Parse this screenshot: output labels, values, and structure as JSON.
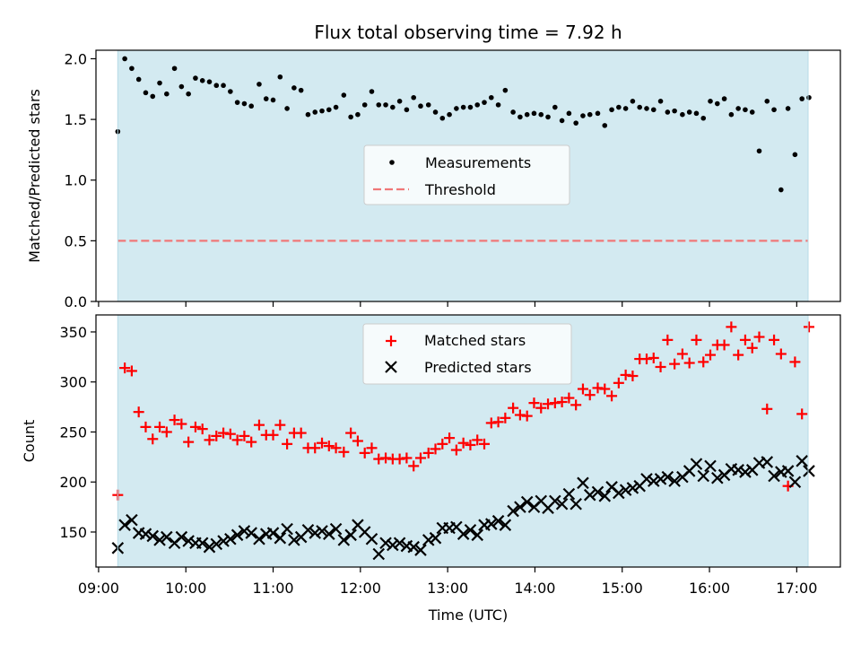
{
  "chart_data": [
    {
      "type": "scatter",
      "title": "Flux total observing time = 7.92 h",
      "xlabel": "",
      "ylabel": "Matched/Predicted stars",
      "xlim": [
        8.97,
        17.5
      ],
      "ylim": [
        0.0,
        2.07
      ],
      "yticks": [
        0.0,
        0.5,
        1.0,
        1.5,
        2.0
      ],
      "ytick_labels": [
        "0.0",
        "0.5",
        "1.0",
        "1.5",
        "2.0"
      ],
      "shaded_span": [
        9.22,
        17.13
      ],
      "threshold": 0.5,
      "threshold_color": "#f07878",
      "shade_color": "#d3eaf1",
      "series": [
        {
          "name": "Measurements",
          "color": "#000000",
          "marker": "dot",
          "x": [
            9.22,
            9.3,
            9.38,
            9.46,
            9.54,
            9.62,
            9.7,
            9.78,
            9.87,
            9.95,
            10.03,
            10.11,
            10.19,
            10.27,
            10.35,
            10.43,
            10.51,
            10.59,
            10.67,
            10.75,
            10.84,
            10.92,
            11.0,
            11.08,
            11.16,
            11.24,
            11.32,
            11.4,
            11.48,
            11.56,
            11.64,
            11.72,
            11.81,
            11.89,
            11.97,
            12.05,
            12.13,
            12.21,
            12.29,
            12.37,
            12.45,
            12.53,
            12.61,
            12.69,
            12.78,
            12.86,
            12.94,
            13.02,
            13.1,
            13.18,
            13.26,
            13.34,
            13.42,
            13.5,
            13.58,
            13.66,
            13.75,
            13.83,
            13.91,
            13.99,
            14.07,
            14.15,
            14.23,
            14.31,
            14.39,
            14.47,
            14.55,
            14.63,
            14.72,
            14.8,
            14.88,
            14.96,
            15.04,
            15.12,
            15.2,
            15.28,
            15.36,
            15.44,
            15.52,
            15.6,
            15.69,
            15.77,
            15.85,
            15.93,
            16.01,
            16.09,
            16.17,
            16.25,
            16.33,
            16.41,
            16.49,
            16.57,
            16.66,
            16.74,
            16.82,
            16.9,
            16.98,
            17.06,
            17.14
          ],
          "y": [
            1.4,
            2.0,
            1.92,
            1.83,
            1.72,
            1.69,
            1.8,
            1.71,
            1.92,
            1.77,
            1.71,
            1.84,
            1.82,
            1.81,
            1.78,
            1.78,
            1.73,
            1.64,
            1.63,
            1.61,
            1.79,
            1.67,
            1.66,
            1.85,
            1.59,
            1.76,
            1.74,
            1.54,
            1.56,
            1.57,
            1.58,
            1.6,
            1.7,
            1.52,
            1.54,
            1.62,
            1.73,
            1.62,
            1.62,
            1.6,
            1.65,
            1.58,
            1.68,
            1.61,
            1.62,
            1.56,
            1.51,
            1.54,
            1.59,
            1.6,
            1.6,
            1.62,
            1.64,
            1.68,
            1.62,
            1.74,
            1.56,
            1.52,
            1.54,
            1.55,
            1.54,
            1.52,
            1.6,
            1.49,
            1.55,
            1.47,
            1.53,
            1.54,
            1.55,
            1.45,
            1.58,
            1.6,
            1.59,
            1.65,
            1.6,
            1.59,
            1.58,
            1.65,
            1.56,
            1.57,
            1.54,
            1.56,
            1.55,
            1.51,
            1.65,
            1.63,
            1.67,
            1.54,
            1.59,
            1.58,
            1.56,
            1.24,
            1.65,
            1.58,
            0.92,
            1.59,
            1.21,
            1.67,
            1.68
          ]
        },
        {
          "name": "Threshold",
          "color": "#f07878",
          "marker": "dashed-line"
        }
      ]
    },
    {
      "type": "scatter",
      "title": "",
      "xlabel": "Time (UTC)",
      "ylabel": "Count",
      "xlim": [
        8.97,
        17.5
      ],
      "ylim": [
        115,
        367
      ],
      "yticks": [
        150,
        200,
        250,
        300,
        350
      ],
      "ytick_labels": [
        "150",
        "200",
        "250",
        "300",
        "350"
      ],
      "xticks": [
        9,
        10,
        11,
        12,
        13,
        14,
        15,
        16,
        17
      ],
      "xtick_labels": [
        "09:00",
        "10:00",
        "11:00",
        "12:00",
        "13:00",
        "14:00",
        "15:00",
        "16:00",
        "17:00"
      ],
      "shaded_span": [
        9.22,
        17.13
      ],
      "series": [
        {
          "name": "Matched stars",
          "color": "#ff0000",
          "marker": "plus",
          "x": [
            9.22,
            9.3,
            9.38,
            9.46,
            9.54,
            9.62,
            9.7,
            9.78,
            9.87,
            9.95,
            10.03,
            10.11,
            10.19,
            10.27,
            10.35,
            10.43,
            10.51,
            10.59,
            10.67,
            10.75,
            10.84,
            10.92,
            11.0,
            11.08,
            11.16,
            11.24,
            11.32,
            11.4,
            11.48,
            11.56,
            11.64,
            11.72,
            11.81,
            11.89,
            11.97,
            12.05,
            12.13,
            12.21,
            12.29,
            12.37,
            12.45,
            12.53,
            12.61,
            12.69,
            12.78,
            12.86,
            12.94,
            13.02,
            13.1,
            13.18,
            13.26,
            13.34,
            13.42,
            13.5,
            13.58,
            13.66,
            13.75,
            13.83,
            13.91,
            13.99,
            14.07,
            14.15,
            14.23,
            14.31,
            14.39,
            14.47,
            14.55,
            14.63,
            14.72,
            14.8,
            14.88,
            14.96,
            15.04,
            15.12,
            15.2,
            15.28,
            15.36,
            15.44,
            15.52,
            15.6,
            15.69,
            15.77,
            15.85,
            15.93,
            16.01,
            16.09,
            16.17,
            16.25,
            16.33,
            16.41,
            16.49,
            16.57,
            16.66,
            16.74,
            16.82,
            16.9,
            16.98,
            17.06,
            17.14
          ],
          "y": [
            187,
            314,
            311,
            270,
            255,
            243,
            255,
            250,
            262,
            258,
            240,
            255,
            253,
            242,
            246,
            249,
            248,
            242,
            246,
            240,
            257,
            247,
            247,
            257,
            238,
            249,
            249,
            234,
            234,
            239,
            236,
            234,
            230,
            249,
            241,
            229,
            234,
            223,
            224,
            223,
            223,
            224,
            216,
            224,
            229,
            233,
            238,
            244,
            232,
            239,
            237,
            242,
            238,
            259,
            260,
            264,
            274,
            267,
            266,
            279,
            274,
            278,
            279,
            280,
            284,
            277,
            293,
            287,
            294,
            293,
            286,
            299,
            307,
            306,
            323,
            323,
            324,
            315,
            342,
            318,
            328,
            319,
            342,
            320,
            327,
            337,
            337,
            355,
            327,
            342,
            334,
            345,
            273,
            342,
            328,
            196,
            320,
            268,
            355
          ]
        },
        {
          "name": "Predicted stars",
          "color": "#000000",
          "marker": "cross",
          "x": [
            9.22,
            9.3,
            9.38,
            9.46,
            9.54,
            9.62,
            9.7,
            9.78,
            9.87,
            9.95,
            10.03,
            10.11,
            10.19,
            10.27,
            10.35,
            10.43,
            10.51,
            10.59,
            10.67,
            10.75,
            10.84,
            10.92,
            11.0,
            11.08,
            11.16,
            11.24,
            11.32,
            11.4,
            11.48,
            11.56,
            11.64,
            11.72,
            11.81,
            11.89,
            11.97,
            12.05,
            12.13,
            12.21,
            12.29,
            12.37,
            12.45,
            12.53,
            12.61,
            12.69,
            12.78,
            12.86,
            12.94,
            13.02,
            13.1,
            13.18,
            13.26,
            13.34,
            13.42,
            13.5,
            13.58,
            13.66,
            13.75,
            13.83,
            13.91,
            13.99,
            14.07,
            14.15,
            14.23,
            14.31,
            14.39,
            14.47,
            14.55,
            14.63,
            14.72,
            14.8,
            14.88,
            14.96,
            15.04,
            15.12,
            15.2,
            15.28,
            15.36,
            15.44,
            15.52,
            15.6,
            15.69,
            15.77,
            15.85,
            15.93,
            16.01,
            16.09,
            16.17,
            16.25,
            16.33,
            16.41,
            16.49,
            16.57,
            16.66,
            16.74,
            16.82,
            16.9,
            16.98,
            17.06,
            17.14
          ],
          "y": [
            134,
            157,
            162,
            149,
            148,
            146,
            142,
            145,
            139,
            145,
            141,
            139,
            139,
            135,
            138,
            141,
            143,
            147,
            151,
            149,
            143,
            148,
            149,
            144,
            153,
            142,
            145,
            152,
            149,
            151,
            148,
            153,
            142,
            147,
            157,
            150,
            143,
            128,
            139,
            137,
            139,
            136,
            135,
            132,
            142,
            144,
            154,
            154,
            155,
            148,
            152,
            147,
            157,
            158,
            161,
            157,
            171,
            175,
            180,
            175,
            181,
            174,
            181,
            178,
            188,
            178,
            199,
            187,
            190,
            186,
            195,
            189,
            192,
            194,
            196,
            203,
            201,
            203,
            205,
            201,
            205,
            211,
            218,
            206,
            216,
            204,
            207,
            213,
            212,
            210,
            212,
            219,
            220,
            206,
            210,
            211,
            200,
            221,
            211
          ]
        }
      ]
    }
  ]
}
